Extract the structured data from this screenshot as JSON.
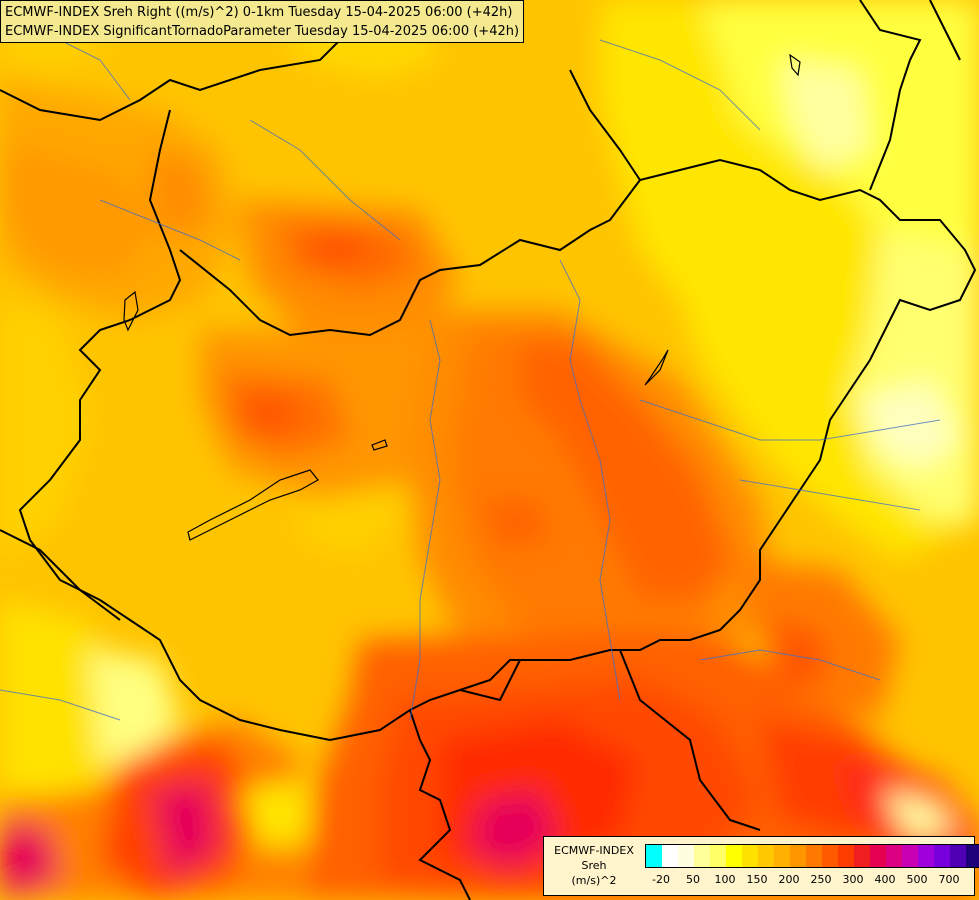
{
  "title_lines": [
    "ECMWF-INDEX Sreh Right ((m/s)^2) 0-1km Tuesday 15-04-2025 06:00 (+42h)",
    "ECMWF-INDEX SignificantTornadoParameter Tuesday 15-04-2025 06:00 (+42h)"
  ],
  "legend": {
    "title_lines": [
      "ECMWF-INDEX",
      "Sreh",
      "(m/s)^2"
    ],
    "colors": [
      "#00ffff",
      "#ffffff",
      "#ffffe0",
      "#ffff99",
      "#ffff66",
      "#ffff00",
      "#ffe100",
      "#ffc800",
      "#ffb000",
      "#ff9600",
      "#ff7800",
      "#ff5a00",
      "#ff3c00",
      "#f01e1e",
      "#e60050",
      "#dc0082",
      "#c800b4",
      "#a000dc",
      "#7800dc",
      "#5000b4",
      "#1e0078"
    ],
    "labels": [
      "-20",
      "50",
      "100",
      "150",
      "200",
      "250",
      "300",
      "400",
      "500",
      "700"
    ]
  }
}
